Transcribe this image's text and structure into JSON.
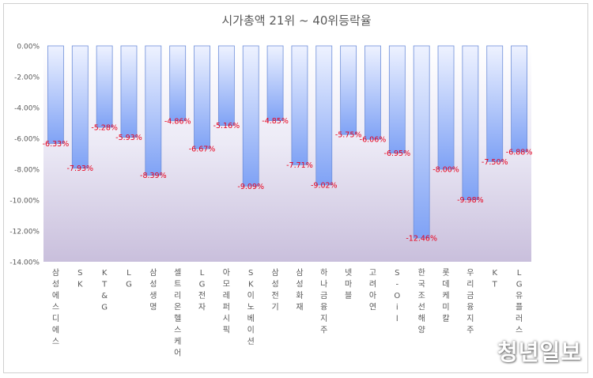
{
  "chart_data": {
    "type": "bar",
    "title": "시가총액 21위 ~ 40위등락율",
    "xlabel": "",
    "ylabel": "",
    "ylim": [
      -14.0,
      0.0
    ],
    "yticks": [
      "0.00%",
      "-2.00%",
      "-4.00%",
      "-6.00%",
      "-8.00%",
      "-10.00%",
      "-12.00%",
      "-14.00%"
    ],
    "categories": [
      "삼성에스디에스",
      "SK",
      "KT&G",
      "LG",
      "삼성생명",
      "셀트리온헬스케어",
      "LG전자",
      "아모레퍼시픽",
      "SK이노베이션",
      "삼성전기",
      "삼성화재",
      "하나금융지주",
      "넷마블",
      "고려아연",
      "S-Oil",
      "한국조선해양",
      "롯데케미칼",
      "우리금융지주",
      "KT",
      "LG유플러스"
    ],
    "values": [
      -6.33,
      -7.93,
      -5.28,
      -5.93,
      -8.39,
      -4.86,
      -6.67,
      -5.16,
      -9.09,
      -4.85,
      -7.71,
      -9.02,
      -5.75,
      -6.06,
      -6.95,
      -12.46,
      -8.0,
      -9.98,
      -7.5,
      -6.88
    ],
    "labels": [
      "-6.33%",
      "-7.93%",
      "-5.28%",
      "-5.93%",
      "-8.39%",
      "-4.86%",
      "-6.67%",
      "-5.16%",
      "-9.09%",
      "-4.85%",
      "-7.71%",
      "-9.02%",
      "-5.75%",
      "-6.06%",
      "-6.95%",
      "-12.46%",
      "-8.00%",
      "-9.98%",
      "-7.50%",
      "-6.88%"
    ],
    "grid": false,
    "label_color": "#e8001c",
    "bar_color_top": "#eef2ff",
    "bar_color_bottom": "#7fa2f5"
  },
  "watermark": "청년일보"
}
